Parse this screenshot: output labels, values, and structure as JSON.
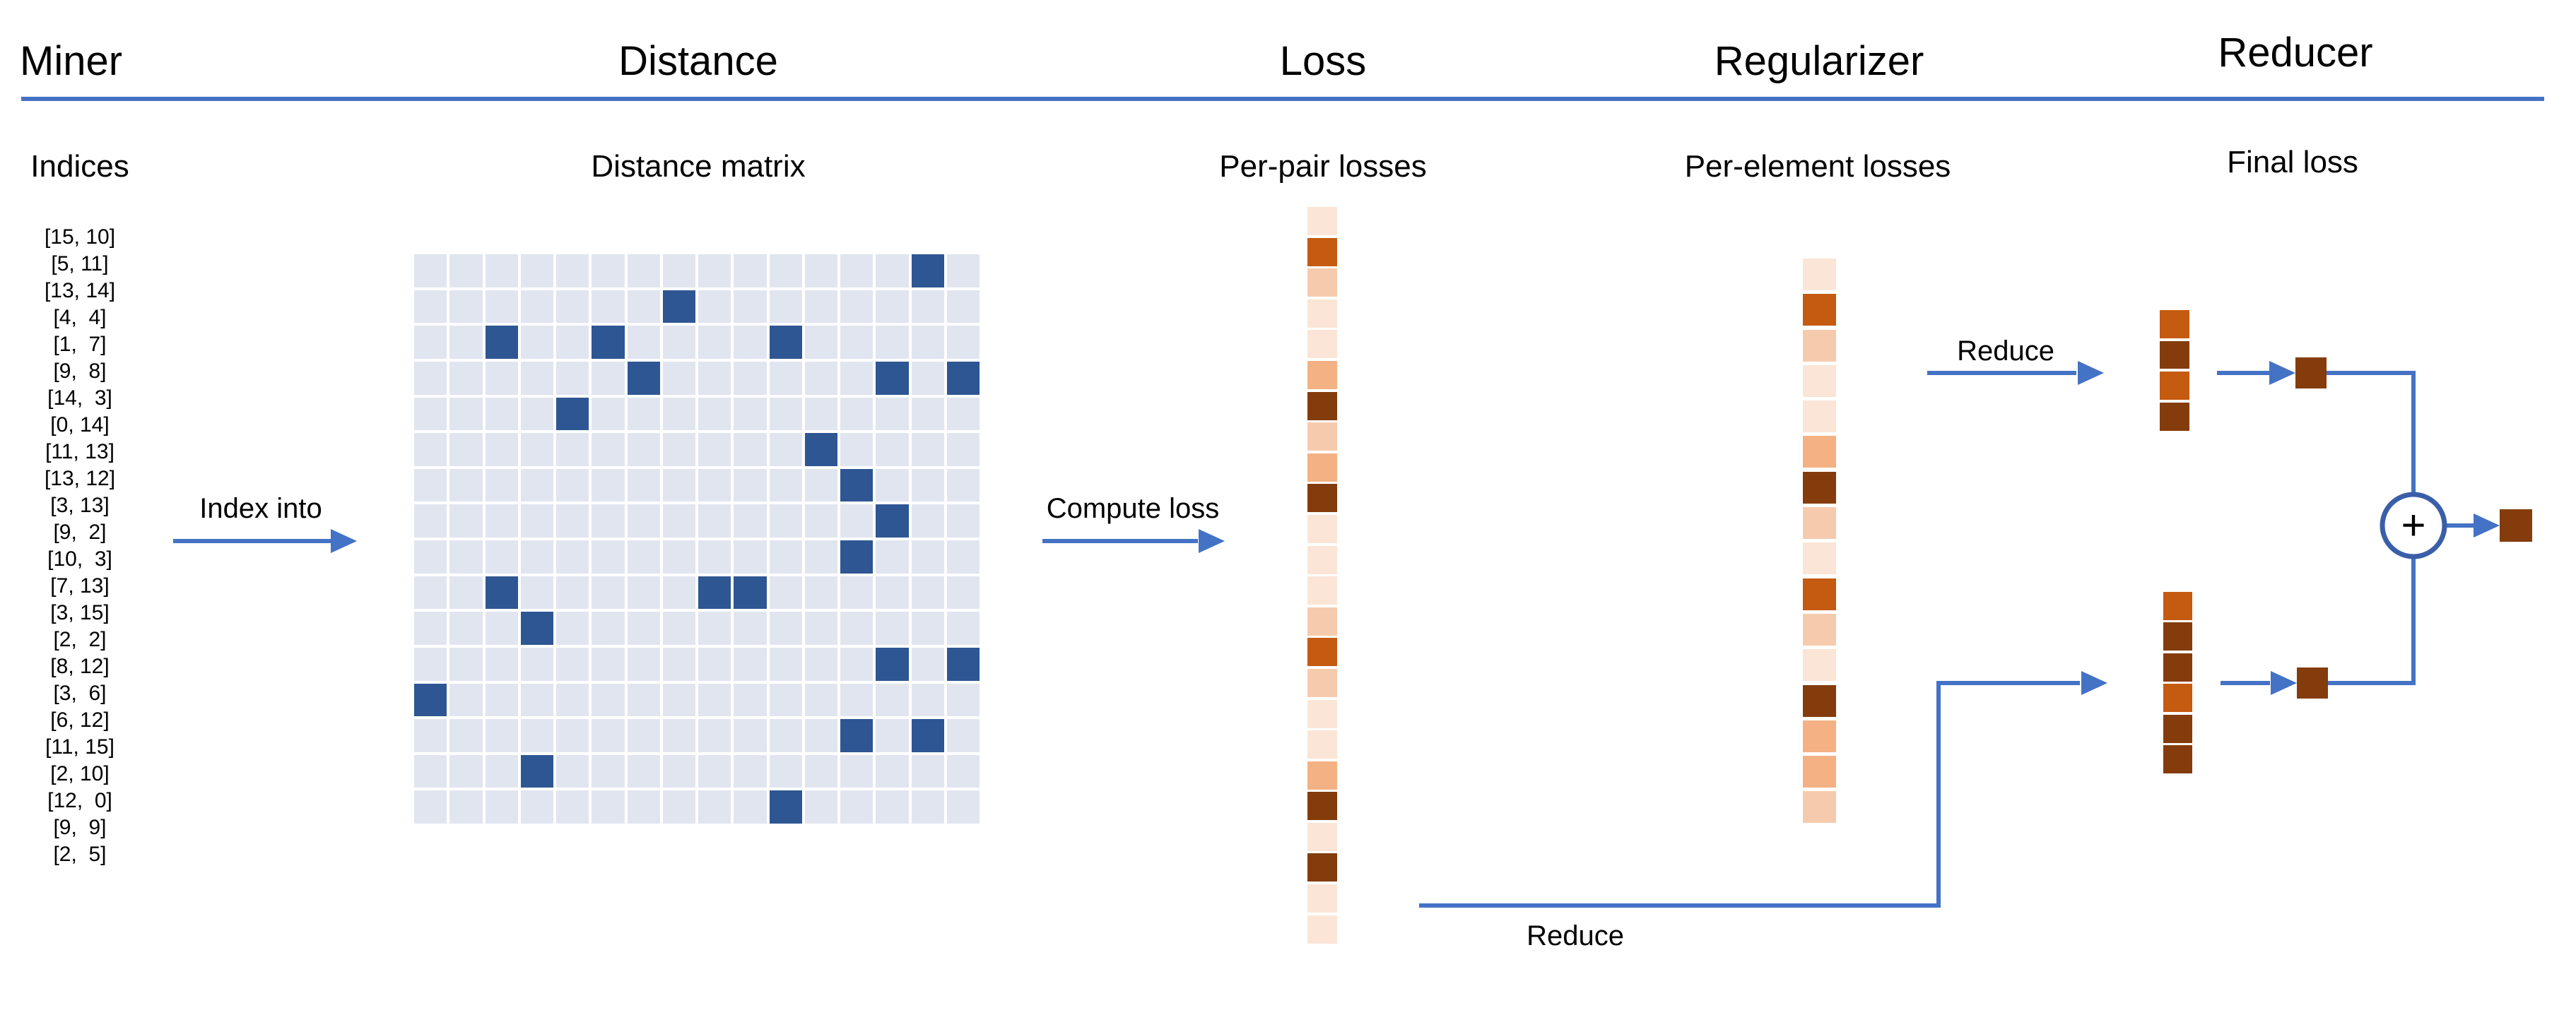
{
  "headers": {
    "miner": "Miner",
    "distance": "Distance",
    "loss": "Loss",
    "regularizer": "Regularizer",
    "reducer": "Reducer"
  },
  "sublabels": {
    "indices": "Indices",
    "distance_matrix": "Distance matrix",
    "per_pair": "Per-pair losses",
    "per_element": "Per-element losses",
    "final_loss": "Final loss"
  },
  "flow_labels": {
    "index_into": "Index into",
    "compute_loss": "Compute loss",
    "reduce_top": "Reduce",
    "reduce_bottom": "Reduce",
    "plus": "+"
  },
  "miner_indices": [
    "[15, 10]",
    "[5, 11]",
    "[13, 14]",
    "[4,  4]",
    "[1,  7]",
    "[9,  8]",
    "[14,  3]",
    "[0, 14]",
    "[11, 13]",
    "[13, 12]",
    "[3, 13]",
    "[9,  2]",
    "[10,  3]",
    "[7, 13]",
    "[3, 15]",
    "[2,  2]",
    "[8, 12]",
    "[3,  6]",
    "[6, 12]",
    "[11, 15]",
    "[2, 10]",
    "[12,  0]",
    "[9,  9]",
    "[2,  5]"
  ],
  "matrix": {
    "rows": 16,
    "cols": 16,
    "highlight_cells": [
      [
        0,
        14
      ],
      [
        1,
        7
      ],
      [
        2,
        2
      ],
      [
        2,
        5
      ],
      [
        2,
        10
      ],
      [
        3,
        6
      ],
      [
        3,
        13
      ],
      [
        3,
        15
      ],
      [
        4,
        4
      ],
      [
        5,
        11
      ],
      [
        6,
        12
      ],
      [
        7,
        13
      ],
      [
        8,
        12
      ],
      [
        9,
        2
      ],
      [
        9,
        8
      ],
      [
        9,
        9
      ],
      [
        10,
        3
      ],
      [
        11,
        13
      ],
      [
        11,
        15
      ],
      [
        12,
        0
      ],
      [
        13,
        12
      ],
      [
        13,
        14
      ],
      [
        14,
        3
      ],
      [
        15,
        10
      ]
    ]
  },
  "per_pair_losses_levels": [
    0,
    3,
    1,
    0,
    0,
    2,
    4,
    1,
    2,
    4,
    0,
    0,
    0,
    1,
    3,
    1,
    0,
    0,
    2,
    4,
    0,
    4,
    0,
    0
  ],
  "per_element_losses_levels": [
    0,
    3,
    1,
    0,
    0,
    2,
    4,
    1,
    0,
    3,
    1,
    0,
    4,
    2,
    2,
    1
  ],
  "reducer": {
    "top_column_levels": [
      3,
      4,
      3,
      4
    ],
    "bottom_column_levels": [
      3,
      4,
      4,
      3,
      4,
      4
    ],
    "top_single_level": 4,
    "bottom_single_level": 4,
    "final_single_level": 4
  },
  "palette": {
    "arrow_blue": "#4472C4",
    "circle_blue": "#3A5FA8",
    "matrix_highlight": "#2E5693",
    "matrix_light": "#E1E5F0",
    "loss_levels": [
      "#FBE5D6",
      "#F6CBAD",
      "#F4B183",
      "#C55A11",
      "#843C0C"
    ]
  }
}
